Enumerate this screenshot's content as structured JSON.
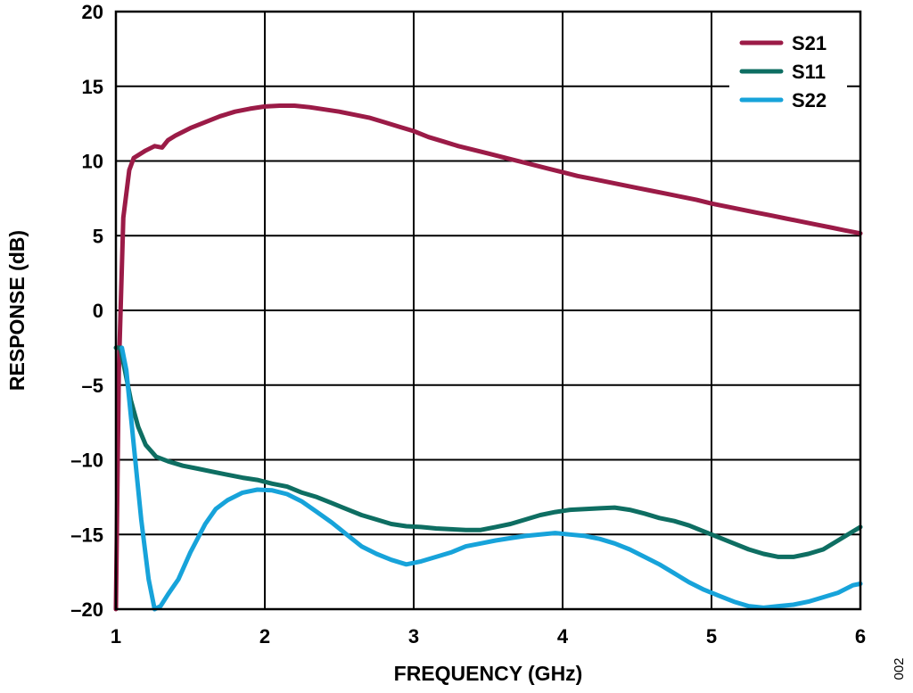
{
  "chart_data": {
    "type": "line",
    "xlabel": "FREQUENCY (GHz)",
    "ylabel": "RESPONSE (dB)",
    "xlim": [
      1,
      6
    ],
    "ylim": [
      -20,
      20
    ],
    "x_ticks": [
      "1",
      "2",
      "3",
      "4",
      "5",
      "6"
    ],
    "y_ticks": [
      "20",
      "15",
      "10",
      "5",
      "0",
      "–5",
      "–10",
      "–15",
      "–20"
    ],
    "grid": true,
    "legend_position": "top-right",
    "series": [
      {
        "name": "S21",
        "color": "#9B1B47",
        "points": [
          [
            1.0,
            -20
          ],
          [
            1.02,
            -4
          ],
          [
            1.05,
            6.2
          ],
          [
            1.09,
            9.4
          ],
          [
            1.12,
            10.2
          ],
          [
            1.2,
            10.7
          ],
          [
            1.26,
            11.0
          ],
          [
            1.31,
            10.9
          ],
          [
            1.35,
            11.4
          ],
          [
            1.4,
            11.7
          ],
          [
            1.5,
            12.2
          ],
          [
            1.6,
            12.6
          ],
          [
            1.7,
            13.0
          ],
          [
            1.8,
            13.3
          ],
          [
            1.9,
            13.5
          ],
          [
            2.0,
            13.65
          ],
          [
            2.1,
            13.7
          ],
          [
            2.2,
            13.7
          ],
          [
            2.3,
            13.6
          ],
          [
            2.4,
            13.45
          ],
          [
            2.5,
            13.3
          ],
          [
            2.6,
            13.1
          ],
          [
            2.7,
            12.9
          ],
          [
            2.8,
            12.6
          ],
          [
            2.9,
            12.3
          ],
          [
            3.0,
            12.0
          ],
          [
            3.1,
            11.6
          ],
          [
            3.2,
            11.3
          ],
          [
            3.3,
            11.0
          ],
          [
            3.4,
            10.75
          ],
          [
            3.5,
            10.5
          ],
          [
            3.6,
            10.25
          ],
          [
            3.7,
            10.0
          ],
          [
            3.8,
            9.75
          ],
          [
            3.9,
            9.5
          ],
          [
            4.0,
            9.25
          ],
          [
            4.1,
            9.0
          ],
          [
            4.2,
            8.8
          ],
          [
            4.3,
            8.6
          ],
          [
            4.4,
            8.4
          ],
          [
            4.5,
            8.2
          ],
          [
            4.6,
            8.0
          ],
          [
            4.7,
            7.8
          ],
          [
            4.8,
            7.6
          ],
          [
            4.9,
            7.4
          ],
          [
            5.0,
            7.15
          ],
          [
            5.1,
            6.95
          ],
          [
            5.2,
            6.75
          ],
          [
            5.3,
            6.55
          ],
          [
            5.4,
            6.35
          ],
          [
            5.5,
            6.15
          ],
          [
            5.6,
            5.95
          ],
          [
            5.7,
            5.75
          ],
          [
            5.8,
            5.55
          ],
          [
            5.9,
            5.35
          ],
          [
            6.0,
            5.15
          ]
        ]
      },
      {
        "name": "S11",
        "color": "#0E6E62",
        "points": [
          [
            1.0,
            -2.5
          ],
          [
            1.03,
            -2.5
          ],
          [
            1.07,
            -4.5
          ],
          [
            1.1,
            -6.0
          ],
          [
            1.15,
            -7.8
          ],
          [
            1.2,
            -9.0
          ],
          [
            1.27,
            -9.8
          ],
          [
            1.35,
            -10.1
          ],
          [
            1.45,
            -10.4
          ],
          [
            1.55,
            -10.6
          ],
          [
            1.65,
            -10.8
          ],
          [
            1.75,
            -11.0
          ],
          [
            1.85,
            -11.2
          ],
          [
            1.95,
            -11.35
          ],
          [
            2.05,
            -11.6
          ],
          [
            2.15,
            -11.8
          ],
          [
            2.25,
            -12.2
          ],
          [
            2.35,
            -12.5
          ],
          [
            2.45,
            -12.9
          ],
          [
            2.55,
            -13.3
          ],
          [
            2.65,
            -13.7
          ],
          [
            2.75,
            -14.0
          ],
          [
            2.85,
            -14.3
          ],
          [
            2.95,
            -14.45
          ],
          [
            3.05,
            -14.5
          ],
          [
            3.15,
            -14.6
          ],
          [
            3.25,
            -14.65
          ],
          [
            3.35,
            -14.7
          ],
          [
            3.45,
            -14.7
          ],
          [
            3.55,
            -14.5
          ],
          [
            3.65,
            -14.3
          ],
          [
            3.75,
            -14.0
          ],
          [
            3.85,
            -13.7
          ],
          [
            3.95,
            -13.5
          ],
          [
            4.05,
            -13.35
          ],
          [
            4.15,
            -13.3
          ],
          [
            4.25,
            -13.25
          ],
          [
            4.35,
            -13.2
          ],
          [
            4.45,
            -13.35
          ],
          [
            4.55,
            -13.6
          ],
          [
            4.65,
            -13.9
          ],
          [
            4.75,
            -14.1
          ],
          [
            4.85,
            -14.4
          ],
          [
            4.95,
            -14.8
          ],
          [
            5.05,
            -15.2
          ],
          [
            5.15,
            -15.6
          ],
          [
            5.25,
            -16.0
          ],
          [
            5.35,
            -16.3
          ],
          [
            5.45,
            -16.5
          ],
          [
            5.55,
            -16.5
          ],
          [
            5.65,
            -16.3
          ],
          [
            5.75,
            -16.0
          ],
          [
            5.85,
            -15.4
          ],
          [
            5.95,
            -14.8
          ],
          [
            6.0,
            -14.5
          ]
        ]
      },
      {
        "name": "S22",
        "color": "#17A3DA",
        "points": [
          [
            1.04,
            -2.5
          ],
          [
            1.07,
            -4.0
          ],
          [
            1.12,
            -9.0
          ],
          [
            1.17,
            -14.0
          ],
          [
            1.22,
            -18.0
          ],
          [
            1.26,
            -20.0
          ],
          [
            1.3,
            -19.8
          ],
          [
            1.35,
            -19.0
          ],
          [
            1.42,
            -18.0
          ],
          [
            1.5,
            -16.2
          ],
          [
            1.6,
            -14.3
          ],
          [
            1.67,
            -13.3
          ],
          [
            1.75,
            -12.7
          ],
          [
            1.85,
            -12.2
          ],
          [
            1.95,
            -12.0
          ],
          [
            2.05,
            -12.05
          ],
          [
            2.15,
            -12.3
          ],
          [
            2.25,
            -12.8
          ],
          [
            2.35,
            -13.5
          ],
          [
            2.45,
            -14.2
          ],
          [
            2.55,
            -15.0
          ],
          [
            2.65,
            -15.8
          ],
          [
            2.75,
            -16.3
          ],
          [
            2.85,
            -16.7
          ],
          [
            2.95,
            -17.0
          ],
          [
            3.05,
            -16.8
          ],
          [
            3.15,
            -16.5
          ],
          [
            3.25,
            -16.2
          ],
          [
            3.35,
            -15.8
          ],
          [
            3.45,
            -15.6
          ],
          [
            3.55,
            -15.4
          ],
          [
            3.65,
            -15.25
          ],
          [
            3.75,
            -15.1
          ],
          [
            3.85,
            -15.0
          ],
          [
            3.95,
            -14.9
          ],
          [
            4.05,
            -15.0
          ],
          [
            4.15,
            -15.1
          ],
          [
            4.25,
            -15.3
          ],
          [
            4.35,
            -15.6
          ],
          [
            4.45,
            -16.0
          ],
          [
            4.55,
            -16.5
          ],
          [
            4.65,
            -17.0
          ],
          [
            4.75,
            -17.6
          ],
          [
            4.85,
            -18.2
          ],
          [
            4.95,
            -18.7
          ],
          [
            5.05,
            -19.1
          ],
          [
            5.15,
            -19.5
          ],
          [
            5.25,
            -19.8
          ],
          [
            5.35,
            -19.9
          ],
          [
            5.45,
            -19.8
          ],
          [
            5.55,
            -19.7
          ],
          [
            5.65,
            -19.5
          ],
          [
            5.75,
            -19.2
          ],
          [
            5.85,
            -18.9
          ],
          [
            5.95,
            -18.4
          ],
          [
            6.0,
            -18.3
          ]
        ]
      }
    ]
  },
  "figure_id": "002"
}
